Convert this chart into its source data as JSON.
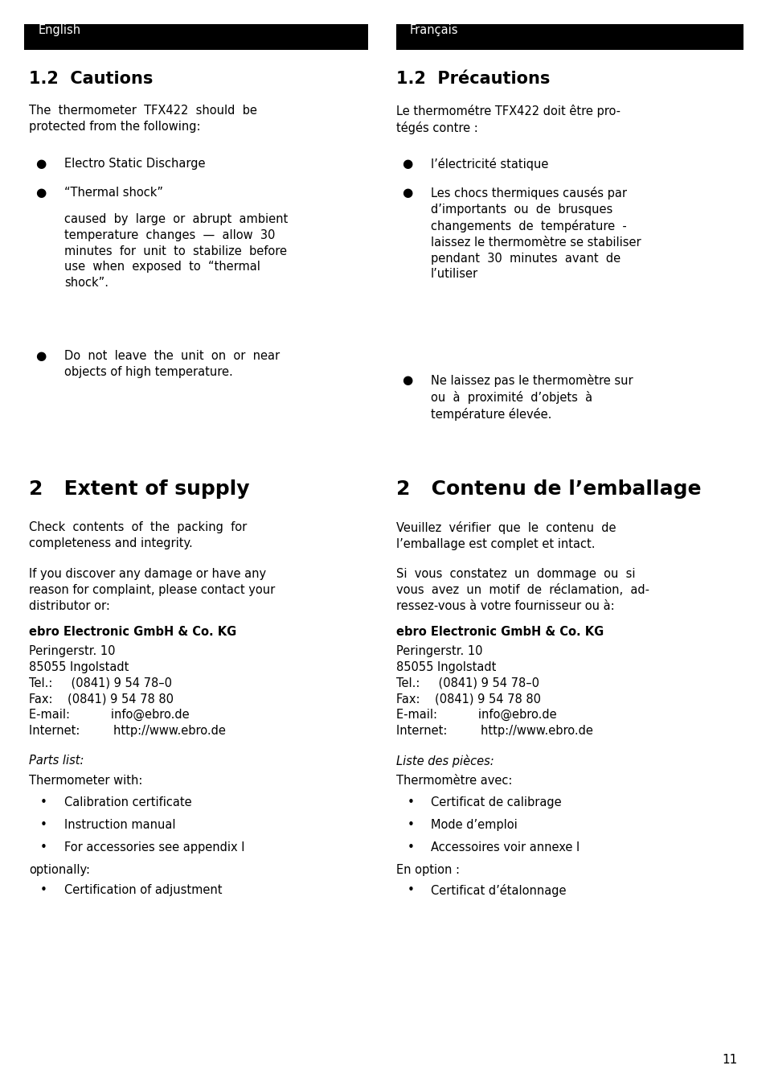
{
  "bg_color": "#ffffff",
  "header_bg": "#000000",
  "header_text_color": "#ffffff",
  "text_color": "#000000",
  "page_width": 9.54,
  "page_height": 13.5,
  "dpi": 100
}
